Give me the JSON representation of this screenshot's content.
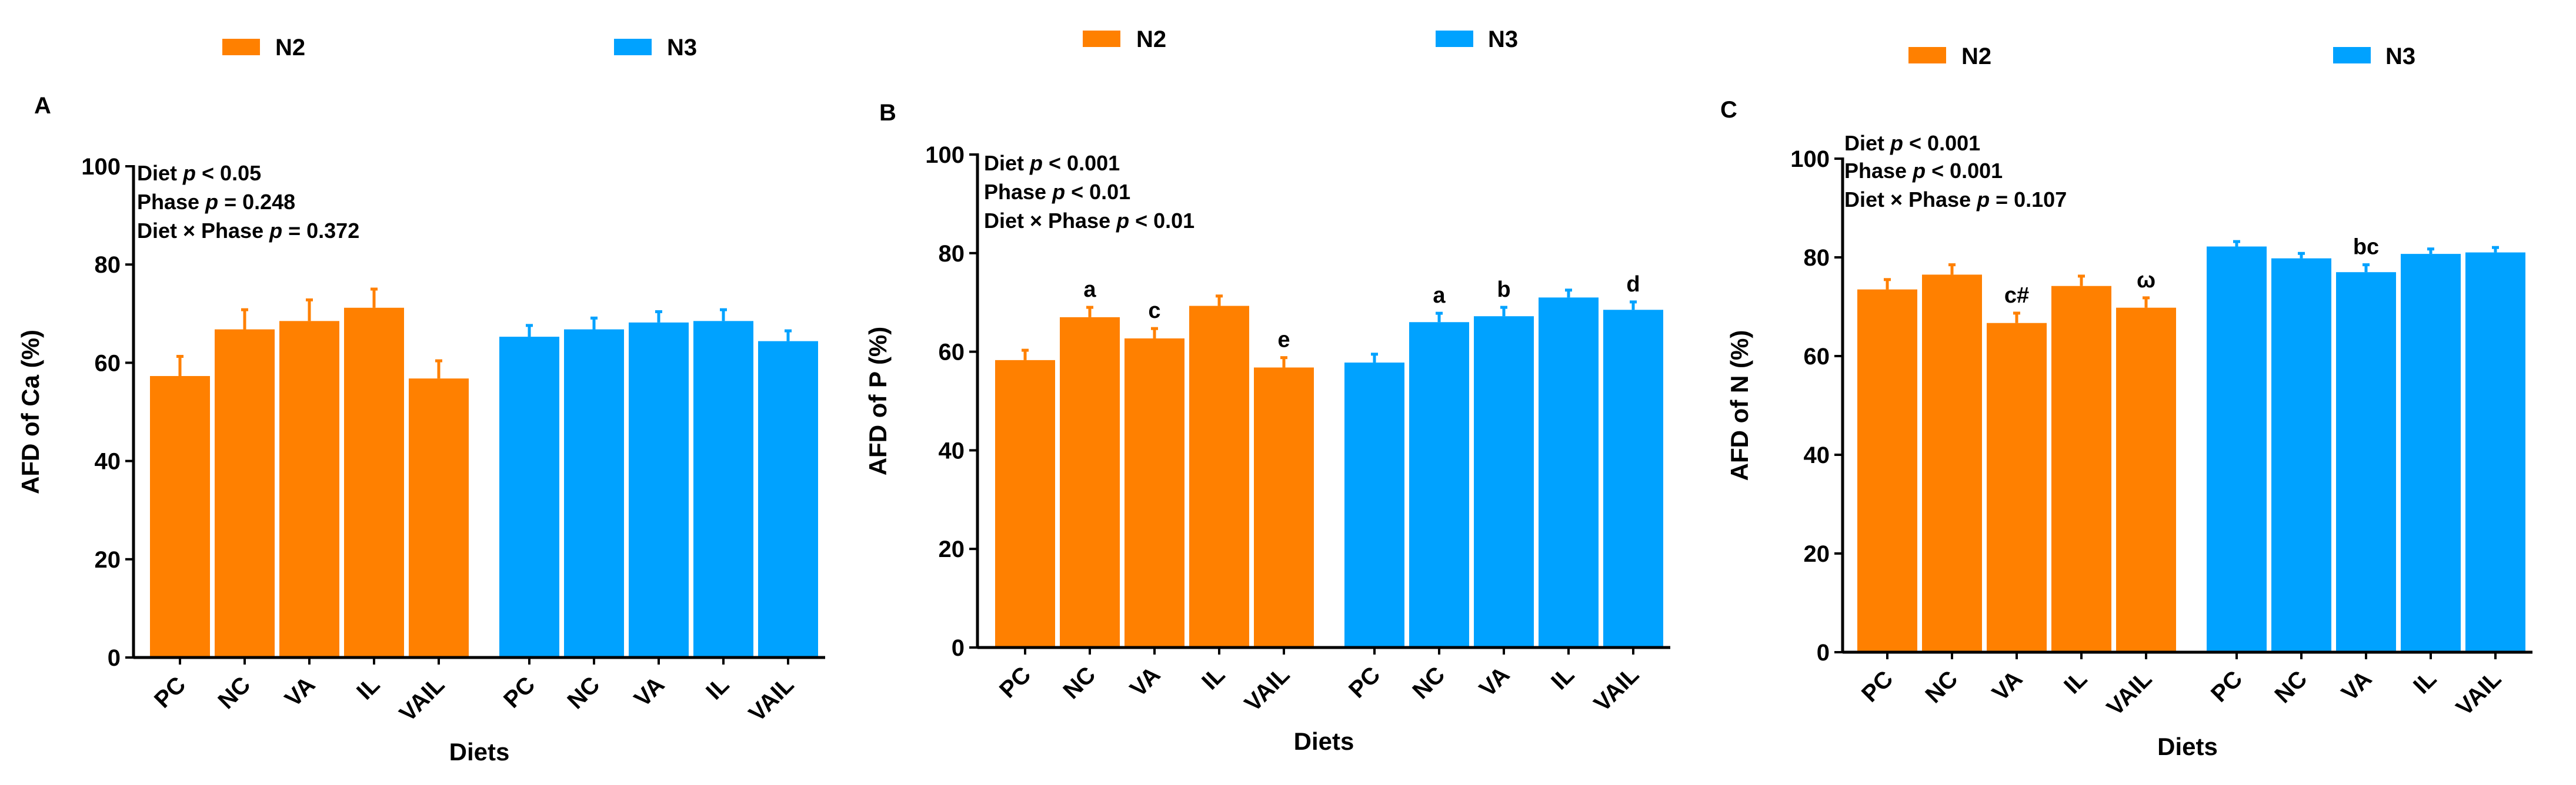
{
  "colors": {
    "N2": "#FF8000",
    "N3": "#00A2FF"
  },
  "chart_data": [
    {
      "type": "bar",
      "panel_label": "A",
      "legend": [
        "N2",
        "N3"
      ],
      "xlabel": "Diets",
      "ylabel": "AFD of Ca (%)",
      "ylim": [
        0,
        100
      ],
      "yticks": [
        "0",
        "20",
        "40",
        "60",
        "80",
        "100"
      ],
      "categories": [
        "PC",
        "NC",
        "VA",
        "IL",
        "VAIL"
      ],
      "stats": [
        {
          "pre": "Diet ",
          "p": "p",
          "post": " < 0.05"
        },
        {
          "pre": "Phase ",
          "p": "p",
          "post": " = 0.248"
        },
        {
          "pre": "Diet × Phase ",
          "p": "p",
          "post": " = 0.372"
        }
      ],
      "series": [
        {
          "name": "N2",
          "values": [
            57.3,
            66.8,
            68.5,
            71.2,
            56.8
          ],
          "errors": [
            4.0,
            4.0,
            4.3,
            3.8,
            3.6
          ],
          "labels": [
            "",
            "",
            "",
            "",
            ""
          ]
        },
        {
          "name": "N3",
          "values": [
            65.3,
            66.8,
            68.2,
            68.5,
            64.4
          ],
          "errors": [
            2.3,
            2.3,
            2.2,
            2.3,
            2.1
          ],
          "labels": [
            "",
            "",
            "",
            "",
            ""
          ]
        }
      ]
    },
    {
      "type": "bar",
      "panel_label": "B",
      "legend": [
        "N2",
        "N3"
      ],
      "xlabel": "Diets",
      "ylabel": "AFD of P (%)",
      "ylim": [
        0,
        100
      ],
      "yticks": [
        "0",
        "20",
        "40",
        "60",
        "80",
        "100"
      ],
      "categories": [
        "PC",
        "NC",
        "VA",
        "IL",
        "VAIL"
      ],
      "stats": [
        {
          "pre": "Diet ",
          "p": "p",
          "post": " < 0.001"
        },
        {
          "pre": "Phase ",
          "p": "p",
          "post": " < 0.01"
        },
        {
          "pre": "Diet × Phase ",
          "p": "p",
          "post": " < 0.01"
        }
      ],
      "series": [
        {
          "name": "N2",
          "values": [
            58.3,
            67.0,
            62.7,
            69.3,
            56.8
          ],
          "errors": [
            2.0,
            2.0,
            2.0,
            2.0,
            2.0
          ],
          "labels": [
            "",
            "a",
            "c",
            "",
            "e"
          ]
        },
        {
          "name": "N3",
          "values": [
            57.8,
            66.0,
            67.2,
            71.0,
            68.5
          ],
          "errors": [
            1.7,
            1.8,
            1.8,
            1.5,
            1.6
          ],
          "labels": [
            "",
            "a",
            "b",
            "",
            "d"
          ]
        }
      ]
    },
    {
      "type": "bar",
      "panel_label": "C",
      "legend": [
        "N2",
        "N3"
      ],
      "xlabel": "Diets",
      "ylabel": "AFD of N (%)",
      "ylim": [
        0,
        100
      ],
      "yticks": [
        "0",
        "20",
        "40",
        "60",
        "80",
        "100"
      ],
      "categories": [
        "PC",
        "NC",
        "VA",
        "IL",
        "VAIL"
      ],
      "stats": [
        {
          "pre": "Diet ",
          "p": "p",
          "post": " < 0.001"
        },
        {
          "pre": "Phase ",
          "p": "p",
          "post": " < 0.001"
        },
        {
          "pre": "Diet × Phase ",
          "p": "p",
          "post": " = 0.107"
        }
      ],
      "series": [
        {
          "name": "N2",
          "values": [
            73.5,
            76.5,
            66.7,
            74.2,
            69.8
          ],
          "errors": [
            2.0,
            2.0,
            2.0,
            2.0,
            2.0
          ],
          "labels": [
            "",
            "",
            "c#",
            "",
            "ω"
          ]
        },
        {
          "name": "N3",
          "values": [
            82.2,
            79.8,
            77.0,
            80.7,
            81.0
          ],
          "errors": [
            1.0,
            1.0,
            1.5,
            1.0,
            1.0
          ],
          "labels": [
            "",
            "",
            "bc",
            "",
            ""
          ]
        }
      ]
    }
  ]
}
